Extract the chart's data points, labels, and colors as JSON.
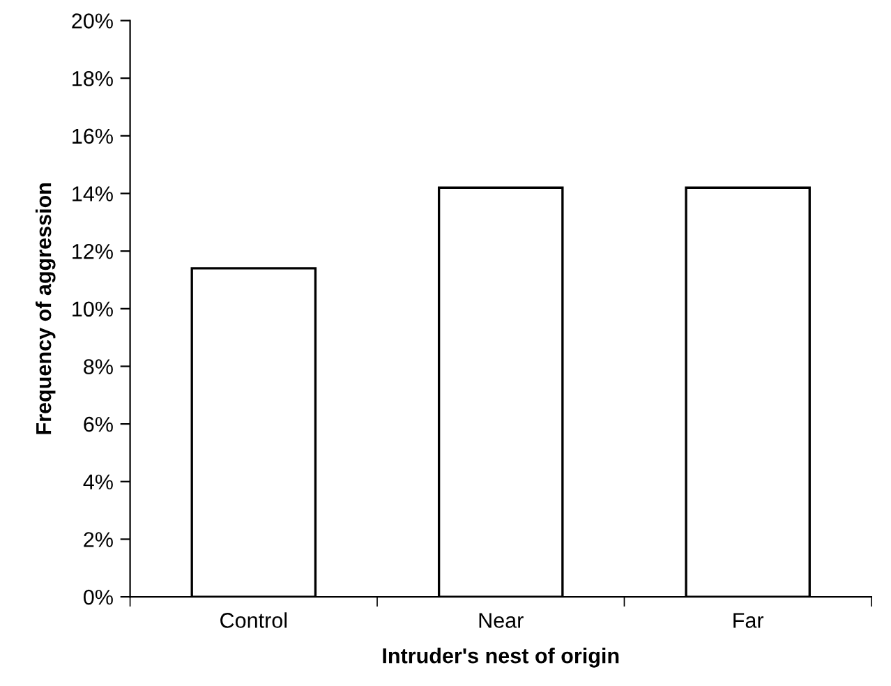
{
  "chart_data": {
    "type": "bar",
    "xlabel": "Intruder's nest of origin",
    "ylabel": "Frequency of aggression",
    "categories": [
      "Control",
      "Near",
      "Far"
    ],
    "values": [
      11.4,
      14.2,
      14.2
    ],
    "color": "#ffffff",
    "ylim": [
      0,
      20
    ],
    "yticks": [
      {
        "value": 0,
        "label": "0%"
      },
      {
        "value": 2,
        "label": "2%"
      },
      {
        "value": 4,
        "label": "4%"
      },
      {
        "value": 6,
        "label": "6%"
      },
      {
        "value": 8,
        "label": "8%"
      },
      {
        "value": 10,
        "label": "10%"
      },
      {
        "value": 12,
        "label": "12%"
      },
      {
        "value": 14,
        "label": "14%"
      },
      {
        "value": 16,
        "label": "16%"
      },
      {
        "value": 18,
        "label": "18%"
      },
      {
        "value": 20,
        "label": "20%"
      }
    ],
    "grid": false
  }
}
